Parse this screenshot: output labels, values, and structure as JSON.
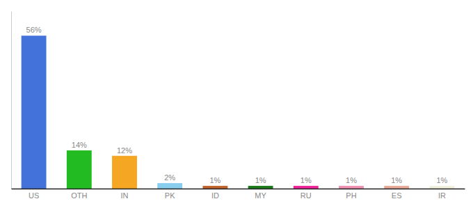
{
  "chart_data": {
    "type": "bar",
    "categories": [
      "US",
      "OTH",
      "IN",
      "PK",
      "ID",
      "MY",
      "RU",
      "PH",
      "ES",
      "IR"
    ],
    "values": [
      56,
      14,
      12,
      2,
      1,
      1,
      1,
      1,
      1,
      1
    ],
    "value_labels": [
      "56%",
      "14%",
      "12%",
      "2%",
      "1%",
      "1%",
      "1%",
      "1%",
      "1%",
      "1%"
    ],
    "colors": [
      "#4472db",
      "#22bb22",
      "#f5a623",
      "#88ccee",
      "#c0622a",
      "#1a7a1a",
      "#ee2299",
      "#f090b0",
      "#e8a898",
      "#f0f0dc"
    ],
    "ylim": [
      0,
      65
    ],
    "grid": false,
    "tick_labels": "x"
  }
}
